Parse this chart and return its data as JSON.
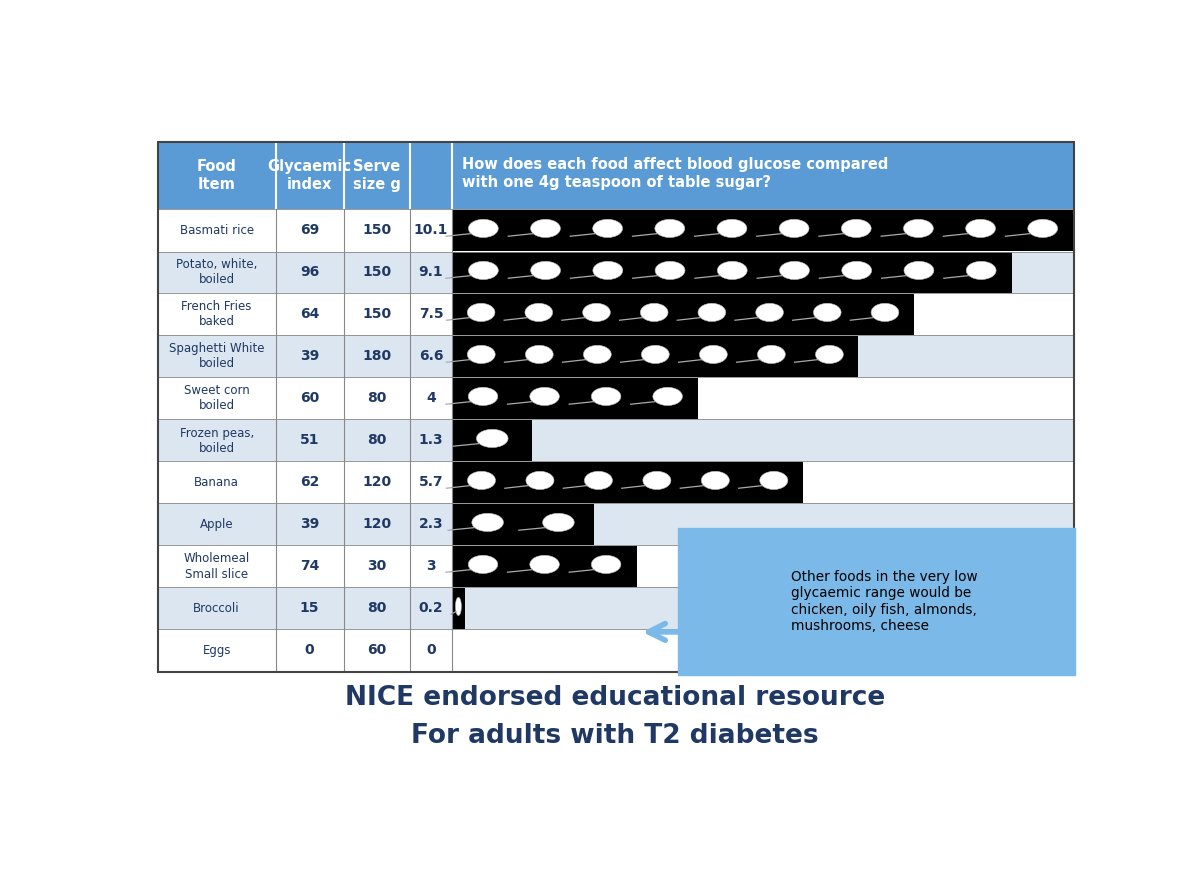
{
  "foods": [
    {
      "name": "Basmati rice",
      "gi": 69,
      "serve": 150,
      "teaspoons": 10.1
    },
    {
      "name": "Potato, white,\nboiled",
      "gi": 96,
      "serve": 150,
      "teaspoons": 9.1
    },
    {
      "name": "French Fries\nbaked",
      "gi": 64,
      "serve": 150,
      "teaspoons": 7.5
    },
    {
      "name": "Spaghetti White\nboiled",
      "gi": 39,
      "serve": 180,
      "teaspoons": 6.6
    },
    {
      "name": "Sweet corn\nboiled",
      "gi": 60,
      "serve": 80,
      "teaspoons": 4.0
    },
    {
      "name": "Frozen peas,\nboiled",
      "gi": 51,
      "serve": 80,
      "teaspoons": 1.3
    },
    {
      "name": "Banana",
      "gi": 62,
      "serve": 120,
      "teaspoons": 5.7
    },
    {
      "name": "Apple",
      "gi": 39,
      "serve": 120,
      "teaspoons": 2.3
    },
    {
      "name": "Wholemeal\nSmall slice",
      "gi": 74,
      "serve": 30,
      "teaspoons": 3.0
    },
    {
      "name": "Broccoli",
      "gi": 15,
      "serve": 80,
      "teaspoons": 0.2
    },
    {
      "name": "Eggs",
      "gi": 0,
      "serve": 60,
      "teaspoons": 0
    }
  ],
  "header_bg": "#5b9bd5",
  "row_bg_dark": "#dce6f1",
  "row_bg_light": "#ffffff",
  "text_color_body": "#1f3864",
  "annotation_bg": "#7ab9e8",
  "annotation_text": "Other foods in the very low\nglycaemic range would be\nchicken, oily fish, almonds,\nmushrooms, cheese",
  "title_line1": "NICE endorsed educational resource",
  "title_line2": "For adults with T2 diabetes",
  "col_header_question": "How does each food affect blood glucose compared\nwith one 4g teaspoon of table sugar?",
  "col_header_food": "Food\nItem",
  "col_header_gi": "Glycaemic\nindex",
  "col_header_serve": "Serve\nsize g",
  "max_teaspoons": 10.1
}
